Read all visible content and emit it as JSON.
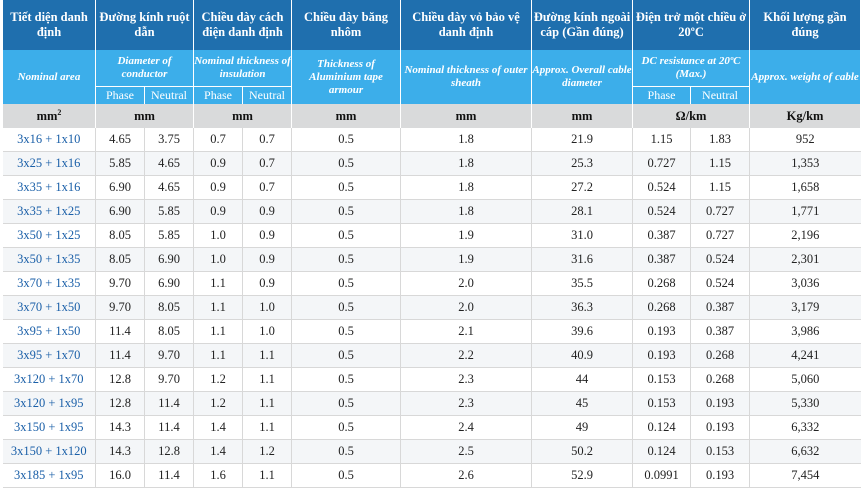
{
  "headers_vi": {
    "area": "Tiết diện danh định",
    "conductor": "Đường kính ruột dẫn",
    "insulation": "Chiều dày cách điện danh định",
    "tape": "Chiều dày băng nhôm",
    "sheath": "Chiều dày vỏ bảo vệ danh định",
    "diameter": "Đường kính ngoài cáp (Gần đúng)",
    "resistance": "Điện trở một chiều ở 20ºC",
    "weight": "Khối lượng gần đúng"
  },
  "headers_en": {
    "area": "Nominal area",
    "conductor": "Diameter of conductor",
    "insulation": "Nominal thickness of insulation",
    "tape": "Thickness of Aluminium tape armour",
    "sheath": "Nominal thickness of outer sheath",
    "diameter": "Approx. Overall cable diameter",
    "resistance": "DC resistance at 20ºC (Max.)",
    "weight": "Approx. weight of cable"
  },
  "sub_headers": {
    "phase": "Phase",
    "neutral": "Neutral"
  },
  "units": {
    "area": "mm",
    "area_sup": "2",
    "conductor": "mm",
    "insulation": "mm",
    "tape": "mm",
    "sheath": "mm",
    "diameter": "mm",
    "resistance": "Ω/km",
    "weight": "Kg/km"
  },
  "rows": [
    [
      "3x16 + 1x10",
      "4.65",
      "3.75",
      "0.7",
      "0.7",
      "0.5",
      "1.8",
      "21.9",
      "1.15",
      "1.83",
      "952"
    ],
    [
      "3x25 + 1x16",
      "5.85",
      "4.65",
      "0.9",
      "0.7",
      "0.5",
      "1.8",
      "25.3",
      "0.727",
      "1.15",
      "1,353"
    ],
    [
      "3x35 + 1x16",
      "6.90",
      "4.65",
      "0.9",
      "0.7",
      "0.5",
      "1.8",
      "27.2",
      "0.524",
      "1.15",
      "1,658"
    ],
    [
      "3x35 + 1x25",
      "6.90",
      "5.85",
      "0.9",
      "0.9",
      "0.5",
      "1.8",
      "28.1",
      "0.524",
      "0.727",
      "1,771"
    ],
    [
      "3x50 + 1x25",
      "8.05",
      "5.85",
      "1.0",
      "0.9",
      "0.5",
      "1.9",
      "31.0",
      "0.387",
      "0.727",
      "2,196"
    ],
    [
      "3x50 + 1x35",
      "8.05",
      "6.90",
      "1.0",
      "0.9",
      "0.5",
      "1.9",
      "31.6",
      "0.387",
      "0.524",
      "2,301"
    ],
    [
      "3x70 + 1x35",
      "9.70",
      "6.90",
      "1.1",
      "0.9",
      "0.5",
      "2.0",
      "35.5",
      "0.268",
      "0.524",
      "3,036"
    ],
    [
      "3x70 + 1x50",
      "9.70",
      "8.05",
      "1.1",
      "1.0",
      "0.5",
      "2.0",
      "36.3",
      "0.268",
      "0.387",
      "3,179"
    ],
    [
      "3x95 + 1x50",
      "11.4",
      "8.05",
      "1.1",
      "1.0",
      "0.5",
      "2.1",
      "39.6",
      "0.193",
      "0.387",
      "3,986"
    ],
    [
      "3x95 + 1x70",
      "11.4",
      "9.70",
      "1.1",
      "1.1",
      "0.5",
      "2.2",
      "40.9",
      "0.193",
      "0.268",
      "4,241"
    ],
    [
      "3x120 + 1x70",
      "12.8",
      "9.70",
      "1.2",
      "1.1",
      "0.5",
      "2.3",
      "44",
      "0.153",
      "0.268",
      "5,060"
    ],
    [
      "3x120 + 1x95",
      "12.8",
      "11.4",
      "1.2",
      "1.1",
      "0.5",
      "2.3",
      "45",
      "0.153",
      "0.193",
      "5,330"
    ],
    [
      "3x150 + 1x95",
      "14.3",
      "11.4",
      "1.4",
      "1.1",
      "0.5",
      "2.4",
      "49",
      "0.124",
      "0.193",
      "6,332"
    ],
    [
      "3x150 + 1x120",
      "14.3",
      "12.8",
      "1.4",
      "1.2",
      "0.5",
      "2.5",
      "50.2",
      "0.124",
      "0.153",
      "6,632"
    ],
    [
      "3x185 + 1x95",
      "16.0",
      "11.4",
      "1.6",
      "1.1",
      "0.5",
      "2.6",
      "52.9",
      "0.0991",
      "0.193",
      "7,454"
    ]
  ],
  "colors": {
    "header_dark": "#1f6fae",
    "header_light": "#3caeea",
    "units_bg": "#d9dadb",
    "first_col_text": "#1a5fa8"
  }
}
